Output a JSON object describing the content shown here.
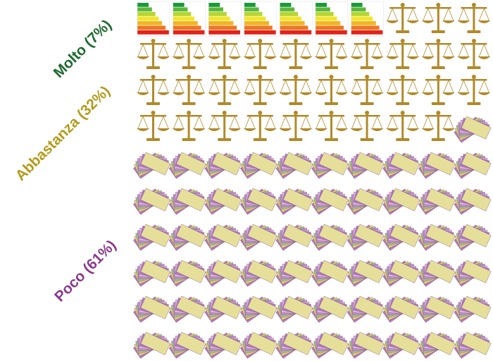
{
  "chart_data": {
    "type": "waffle",
    "categories": [
      "Molto (7%)",
      "Abbastanza (32%)",
      "Poco (61%)"
    ],
    "values": [
      7,
      32,
      61
    ],
    "colors": [
      "#1e6b2f",
      "#b39b1c",
      "#8a3a8c"
    ]
  }
}
